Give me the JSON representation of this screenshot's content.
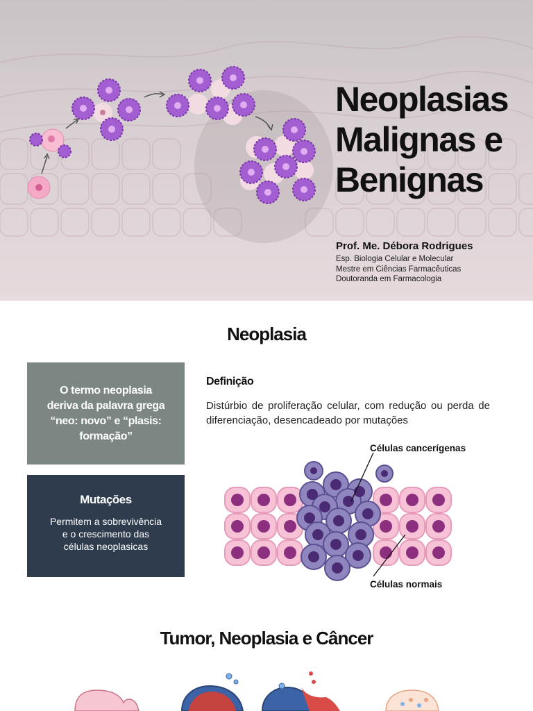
{
  "hero": {
    "title_lines": [
      "Neoplasias",
      "Malignas e",
      "Benignas"
    ],
    "author": "Prof. Me. Débora Rodrigues",
    "credentials": [
      "Esp. Biologia Celular e Molecular",
      "Mestre em Ciências Farmacêuticas",
      "Doutoranda em Farmacologia"
    ]
  },
  "neoplasia": {
    "heading": "Neoplasia",
    "origin_box": "O termo neoplasia deriva da palavra grega “neo: novo” e “plasis: formação”",
    "mutations": {
      "title": "Mutações",
      "text": "Permitem a sobrevivência e o crescimento das células neoplasicas"
    },
    "definition": {
      "title": "Definição",
      "text": "Distúrbio de proliferação celular, com redução ou perda de diferenciação, desencadeado por mutações"
    },
    "diagram": {
      "label_cancer": "Células cancerígenas",
      "label_normal": "Células normais"
    }
  },
  "tumor_section": {
    "heading": "Tumor, Neoplasia e Câncer"
  },
  "colors": {
    "gray_box": "#7c8783",
    "dark_box": "#2e3c4e",
    "normal_cell": "#f7c2d6",
    "cancer_cell": "#8f86bf"
  }
}
